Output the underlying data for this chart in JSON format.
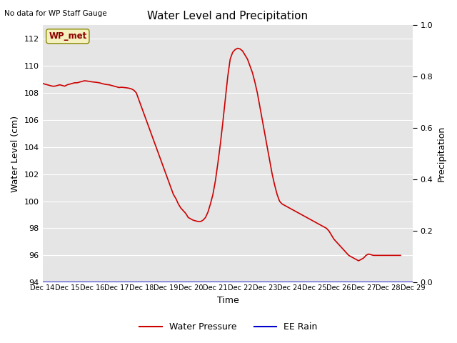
{
  "title": "Water Level and Precipitation",
  "subtitle": "No data for WP Staff Gauge",
  "ylabel_left": "Water Level (cm)",
  "ylabel_right": "Precipitation",
  "xlabel": "Time",
  "ylim_left": [
    94,
    113
  ],
  "ylim_right": [
    0.0,
    1.0
  ],
  "yticks_left": [
    94,
    96,
    98,
    100,
    102,
    104,
    106,
    108,
    110,
    112
  ],
  "yticks_right": [
    0.0,
    0.2,
    0.4,
    0.6,
    0.8,
    1.0
  ],
  "legend_label_wp": "Water Pressure",
  "legend_label_rain": "EE Rain",
  "annotation_label": "WP_met",
  "background_color": "#e5e5e5",
  "wp_color": "#cc0000",
  "rain_color": "#0000cc",
  "wp_x": [
    0,
    0.2,
    0.4,
    0.6,
    0.8,
    1.0,
    1.2,
    1.4,
    1.6,
    1.8,
    2.0,
    2.2,
    2.4,
    2.6,
    2.8,
    3.0,
    3.2,
    3.4,
    3.6,
    3.8,
    4.0,
    4.2,
    4.4,
    4.6,
    4.8,
    5.0,
    5.2,
    5.4,
    5.6,
    5.8,
    6.0,
    6.2,
    6.4,
    6.6,
    6.8,
    7.0,
    7.2,
    7.4,
    7.6,
    7.8,
    8.0,
    8.2,
    8.4,
    8.6,
    8.8,
    9.0,
    9.2,
    9.4,
    9.6,
    9.8,
    10.0,
    10.2,
    10.4,
    10.6,
    10.8,
    11.0,
    11.2,
    11.4,
    11.6,
    11.8,
    12.0,
    12.2,
    12.4,
    12.6,
    12.8,
    13.0,
    13.2,
    13.4,
    13.6,
    13.8,
    14.0,
    14.2,
    14.4,
    14.6,
    14.8,
    15.0
  ],
  "wp_y": [
    108.7,
    108.65,
    108.6,
    108.55,
    108.5,
    108.5,
    108.55,
    108.6,
    108.55,
    108.5,
    108.6,
    108.65,
    108.7,
    108.75,
    108.75,
    108.8,
    108.85,
    108.9,
    108.88,
    108.85,
    108.82,
    108.8,
    108.78,
    108.75,
    108.7,
    108.65,
    108.62,
    108.6,
    108.55,
    108.5,
    108.45,
    108.4,
    108.42,
    108.4,
    108.38,
    108.35,
    108.3,
    108.2,
    108.0,
    107.5,
    107.0,
    106.5,
    106.0,
    105.5,
    105.0,
    104.5,
    104.0,
    103.5,
    103.0,
    102.5,
    102.0,
    101.5,
    101.0,
    100.5,
    100.2,
    99.8,
    99.5,
    99.3,
    99.1,
    98.8,
    98.7,
    98.6,
    98.55,
    98.5,
    98.5,
    98.6,
    98.8,
    99.2,
    99.8,
    100.5,
    101.5,
    102.8,
    104.2,
    105.8,
    107.5,
    109.2
  ],
  "wp_x2": [
    15.0,
    15.2,
    15.4,
    15.6,
    15.8,
    16.0,
    16.2,
    16.4,
    16.6,
    16.8,
    17.0,
    17.2,
    17.4,
    17.6,
    17.8,
    18.0,
    18.2,
    18.4,
    18.6,
    18.8,
    19.0,
    19.2,
    19.4,
    19.6,
    19.8,
    20.0,
    20.2,
    20.4,
    20.6,
    20.8,
    21.0,
    21.2,
    21.4,
    21.6,
    21.8,
    22.0,
    22.2,
    22.4,
    22.6,
    22.8,
    23.0,
    23.2,
    23.4,
    23.6,
    23.8,
    24.0,
    24.2,
    24.4,
    24.6,
    24.8,
    25.0,
    25.2,
    25.4,
    25.6,
    25.8,
    26.0,
    26.2,
    26.4,
    26.6,
    26.8,
    27.0,
    27.2,
    27.4,
    27.6,
    27.8,
    28.0,
    28.2,
    28.4,
    28.6,
    28.8,
    29.0
  ],
  "wp_y2": [
    109.2,
    110.5,
    111.0,
    111.2,
    111.3,
    111.25,
    111.1,
    110.8,
    110.5,
    110.0,
    109.5,
    108.8,
    108.0,
    107.0,
    106.0,
    105.0,
    104.0,
    103.0,
    102.0,
    101.2,
    100.5,
    100.0,
    99.8,
    99.7,
    99.6,
    99.5,
    99.4,
    99.3,
    99.2,
    99.1,
    99.0,
    98.9,
    98.8,
    98.7,
    98.6,
    98.5,
    98.4,
    98.3,
    98.2,
    98.1,
    98.0,
    97.8,
    97.5,
    97.2,
    97.0,
    96.8,
    96.6,
    96.4,
    96.2,
    96.0,
    95.9,
    95.8,
    95.7,
    95.6,
    95.7,
    95.8,
    96.0,
    96.1,
    96.05,
    96.0,
    96.0,
    96.0,
    96.0,
    96.0,
    96.0,
    96.0,
    96.0,
    96.0,
    96.0,
    96.0,
    96.0
  ],
  "xtick_labels": [
    "Dec 14",
    "Dec 15",
    "Dec 16",
    "Dec 17",
    "Dec 18",
    "Dec 19",
    "Dec 20",
    "Dec 21",
    "Dec 22",
    "Dec 23",
    "Dec 24",
    "Dec 25",
    "Dec 26",
    "Dec 27",
    "Dec 28",
    "Dec 29"
  ],
  "xtick_positions": [
    0,
    2,
    4,
    6,
    8,
    10,
    12,
    14,
    16,
    18,
    20,
    22,
    24,
    26,
    28,
    30
  ]
}
